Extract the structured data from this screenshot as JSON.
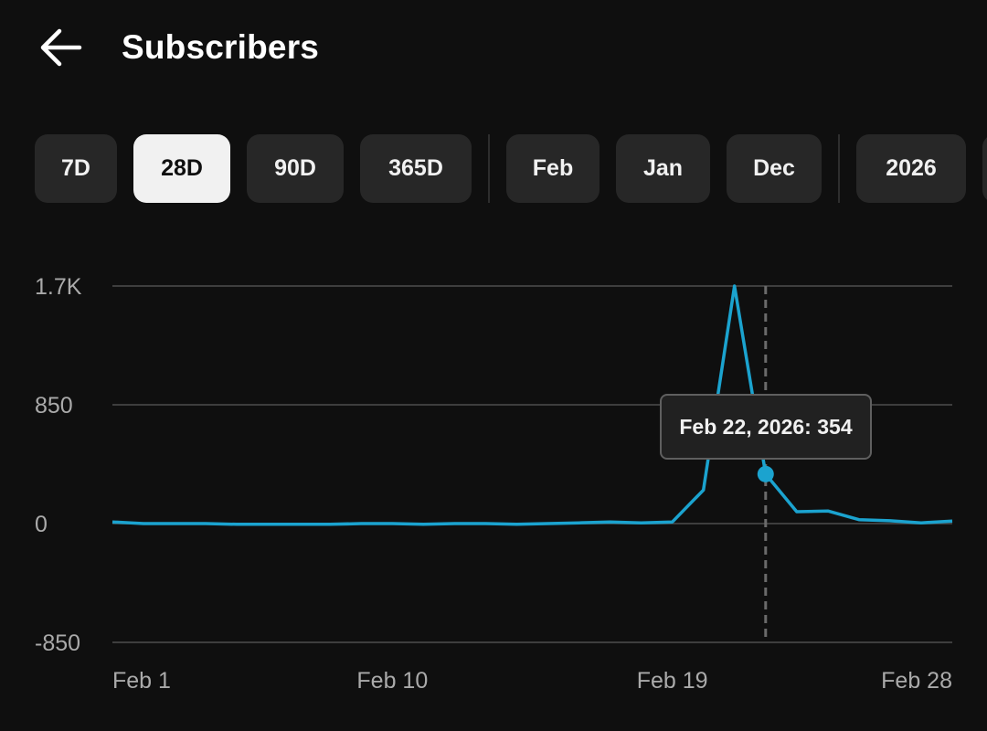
{
  "header": {
    "title": "Subscribers",
    "back_icon": "arrow-back-icon"
  },
  "chips": [
    {
      "label": "7D",
      "selected": false
    },
    {
      "label": "28D",
      "selected": true
    },
    {
      "label": "90D",
      "selected": false
    },
    {
      "label": "365D",
      "selected": false
    },
    {
      "label": "Feb",
      "selected": false
    },
    {
      "label": "Jan",
      "selected": false
    },
    {
      "label": "Dec",
      "selected": false
    },
    {
      "label": "2026",
      "selected": false
    }
  ],
  "tooltip": {
    "text": "Feb 22, 2026: 354"
  },
  "colors": {
    "background": "#0f0f0f",
    "line": "#1ba3cf",
    "chip": "#272727",
    "chip_selected": "#f1f1f1",
    "grid": "#3e3e3e"
  },
  "chart_data": {
    "type": "line",
    "x": [
      "Feb 1",
      "Feb 2",
      "Feb 3",
      "Feb 4",
      "Feb 5",
      "Feb 6",
      "Feb 7",
      "Feb 8",
      "Feb 9",
      "Feb 10",
      "Feb 11",
      "Feb 12",
      "Feb 13",
      "Feb 14",
      "Feb 15",
      "Feb 16",
      "Feb 17",
      "Feb 18",
      "Feb 19",
      "Feb 20",
      "Feb 21",
      "Feb 22",
      "Feb 23",
      "Feb 24",
      "Feb 25",
      "Feb 26",
      "Feb 27",
      "Feb 28"
    ],
    "series": [
      {
        "values": [
          12,
          0,
          0,
          0,
          -5,
          -5,
          -5,
          -5,
          0,
          0,
          -5,
          0,
          0,
          -5,
          0,
          5,
          12,
          5,
          12,
          240,
          1700,
          354,
          85,
          90,
          28,
          20,
          5,
          18
        ]
      }
    ],
    "x_tick_labels": [
      "Feb 1",
      "Feb 10",
      "Feb 19",
      "Feb 28"
    ],
    "x_tick_positions": [
      "Feb 1",
      "Feb 10",
      "Feb 19",
      "Feb 28"
    ],
    "y_ticks": [
      1700,
      850,
      0,
      -850
    ],
    "y_tick_labels": [
      "1.7K",
      "850",
      "0",
      "-850"
    ],
    "ylim": [
      -850,
      1700
    ],
    "highlight": {
      "x": "Feb 22",
      "value": 354
    },
    "grid": true
  }
}
